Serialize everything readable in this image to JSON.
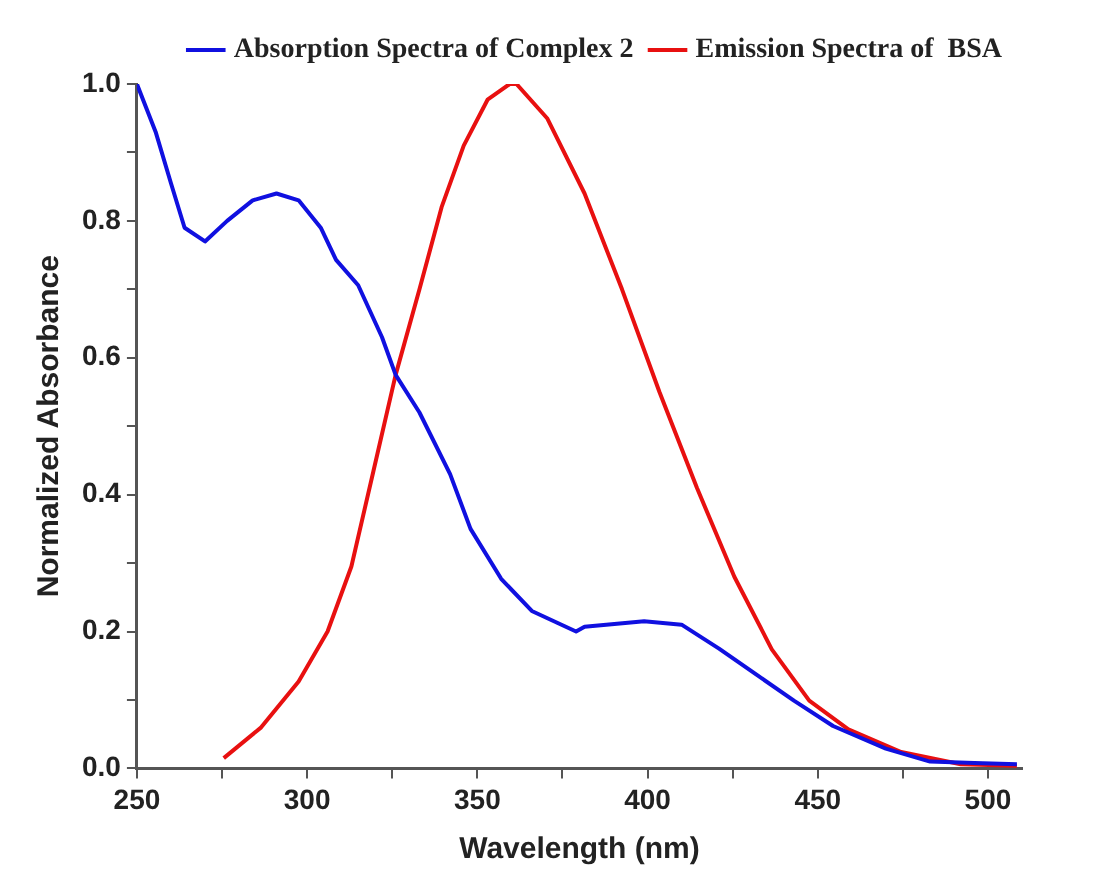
{
  "chart_data": {
    "type": "line",
    "xlabel": "Wavelength (nm)",
    "ylabel": "Normalized Absorbance",
    "xlim": [
      250,
      510
    ],
    "xticks": [
      250,
      {
        "value": 275,
        "label": null
      },
      300,
      {
        "value": 325,
        "label": null
      },
      350,
      {
        "value": 375,
        "label": null
      },
      400,
      {
        "value": 425,
        "label": null
      },
      450,
      {
        "value": 475,
        "label": null
      },
      500
    ],
    "ylim": [
      0,
      1
    ],
    "yticks": [
      {
        "value": 0,
        "label": "0.0"
      },
      {
        "value": 0.1,
        "label": null
      },
      0.2,
      {
        "value": 0.3,
        "label": null
      },
      0.4,
      {
        "value": 0.5,
        "label": null
      },
      0.6,
      {
        "value": 0.7,
        "label": null
      },
      0.8,
      {
        "value": 0.9,
        "label": null
      },
      {
        "value": 1,
        "label": "1.0"
      }
    ],
    "grid": false,
    "legend": "top right",
    "marker": "none",
    "line_style": "solid",
    "series": [
      {
        "name": "Absorption Spectra of Complex 2",
        "color": "#1010e0",
        "x": [
          250,
          255.5,
          260,
          264,
          270,
          276.5,
          284,
          291,
          297.5,
          304,
          308.5,
          315,
          322,
          326,
          333,
          342,
          348,
          357,
          366,
          379,
          381.5,
          399,
          410,
          421,
          432,
          443,
          454.5,
          470,
          483,
          496,
          508.5
        ],
        "values": [
          1.0,
          0.93,
          0.855,
          0.79,
          0.77,
          0.8,
          0.83,
          0.84,
          0.83,
          0.79,
          0.743,
          0.706,
          0.63,
          0.575,
          0.52,
          0.43,
          0.35,
          0.277,
          0.23,
          0.2,
          0.207,
          0.215,
          0.21,
          0.175,
          0.137,
          0.099,
          0.062,
          0.029,
          0.01,
          0.008,
          0.006
        ]
      },
      {
        "name": "Emission Spectra of  BSA",
        "color": "#e81010",
        "x": [
          275.5,
          286.5,
          297.5,
          306,
          313,
          319.5,
          326,
          333,
          339.5,
          346,
          353,
          359.5,
          361.5,
          370.5,
          381.5,
          392.5,
          403.5,
          414.5,
          425.5,
          436.5,
          447.5,
          459,
          474.5,
          492,
          508.5
        ],
        "values": [
          0.015,
          0.06,
          0.127,
          0.2,
          0.295,
          0.435,
          0.575,
          0.7,
          0.82,
          0.91,
          0.977,
          1.0,
          1.0,
          0.95,
          0.84,
          0.7,
          0.55,
          0.41,
          0.28,
          0.174,
          0.099,
          0.057,
          0.024,
          0.006,
          0.004
        ]
      }
    ]
  }
}
